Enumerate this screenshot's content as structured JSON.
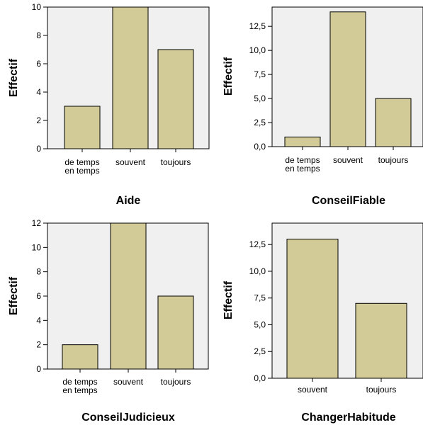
{
  "chart_data": [
    {
      "type": "bar",
      "xlabel": "Aide",
      "ylabel": "Effectif",
      "categories": [
        [
          "de temps",
          "en temps"
        ],
        [
          "souvent"
        ],
        [
          "toujours"
        ]
      ],
      "values": [
        3,
        10,
        7
      ],
      "ylim": [
        0,
        10
      ],
      "yticks": [
        "0",
        "2",
        "4",
        "6",
        "8",
        "10"
      ],
      "ytick_values": [
        0,
        2,
        4,
        6,
        8,
        10
      ],
      "grid": false,
      "bar_color": "#d2cb97",
      "plot_background": "#f0f0f0"
    },
    {
      "type": "bar",
      "xlabel": "ConseilFiable",
      "ylabel": "Effectif",
      "categories": [
        [
          "de temps",
          "en temps"
        ],
        [
          "souvent"
        ],
        [
          "toujours"
        ]
      ],
      "values": [
        1,
        14,
        5
      ],
      "ylim": [
        0,
        14.5
      ],
      "yticks": [
        "0,0",
        "2,5",
        "5,0",
        "7,5",
        "10,0",
        "12,5"
      ],
      "ytick_values": [
        0,
        2.5,
        5,
        7.5,
        10,
        12.5
      ],
      "grid": false,
      "bar_color": "#d2cb97",
      "plot_background": "#f0f0f0"
    },
    {
      "type": "bar",
      "xlabel": "ConseilJudicieux",
      "ylabel": "Effectif",
      "categories": [
        [
          "de temps",
          "en temps"
        ],
        [
          "souvent"
        ],
        [
          "toujours"
        ]
      ],
      "values": [
        2,
        12,
        6
      ],
      "ylim": [
        0,
        12
      ],
      "yticks": [
        "0",
        "2",
        "4",
        "6",
        "8",
        "10",
        "12"
      ],
      "ytick_values": [
        0,
        2,
        4,
        6,
        8,
        10,
        12
      ],
      "grid": false,
      "bar_color": "#d2cb97",
      "plot_background": "#f0f0f0"
    },
    {
      "type": "bar",
      "xlabel": "ChangerHabitude",
      "ylabel": "Effectif",
      "categories": [
        [
          "souvent"
        ],
        [
          "toujours"
        ]
      ],
      "values": [
        13,
        7
      ],
      "ylim": [
        0,
        14.5
      ],
      "yticks": [
        "0,0",
        "2,5",
        "5,0",
        "7,5",
        "10,0",
        "12,5"
      ],
      "ytick_values": [
        0,
        2.5,
        5,
        7.5,
        10,
        12.5
      ],
      "grid": false,
      "bar_color": "#d2cb97",
      "plot_background": "#f0f0f0"
    }
  ]
}
